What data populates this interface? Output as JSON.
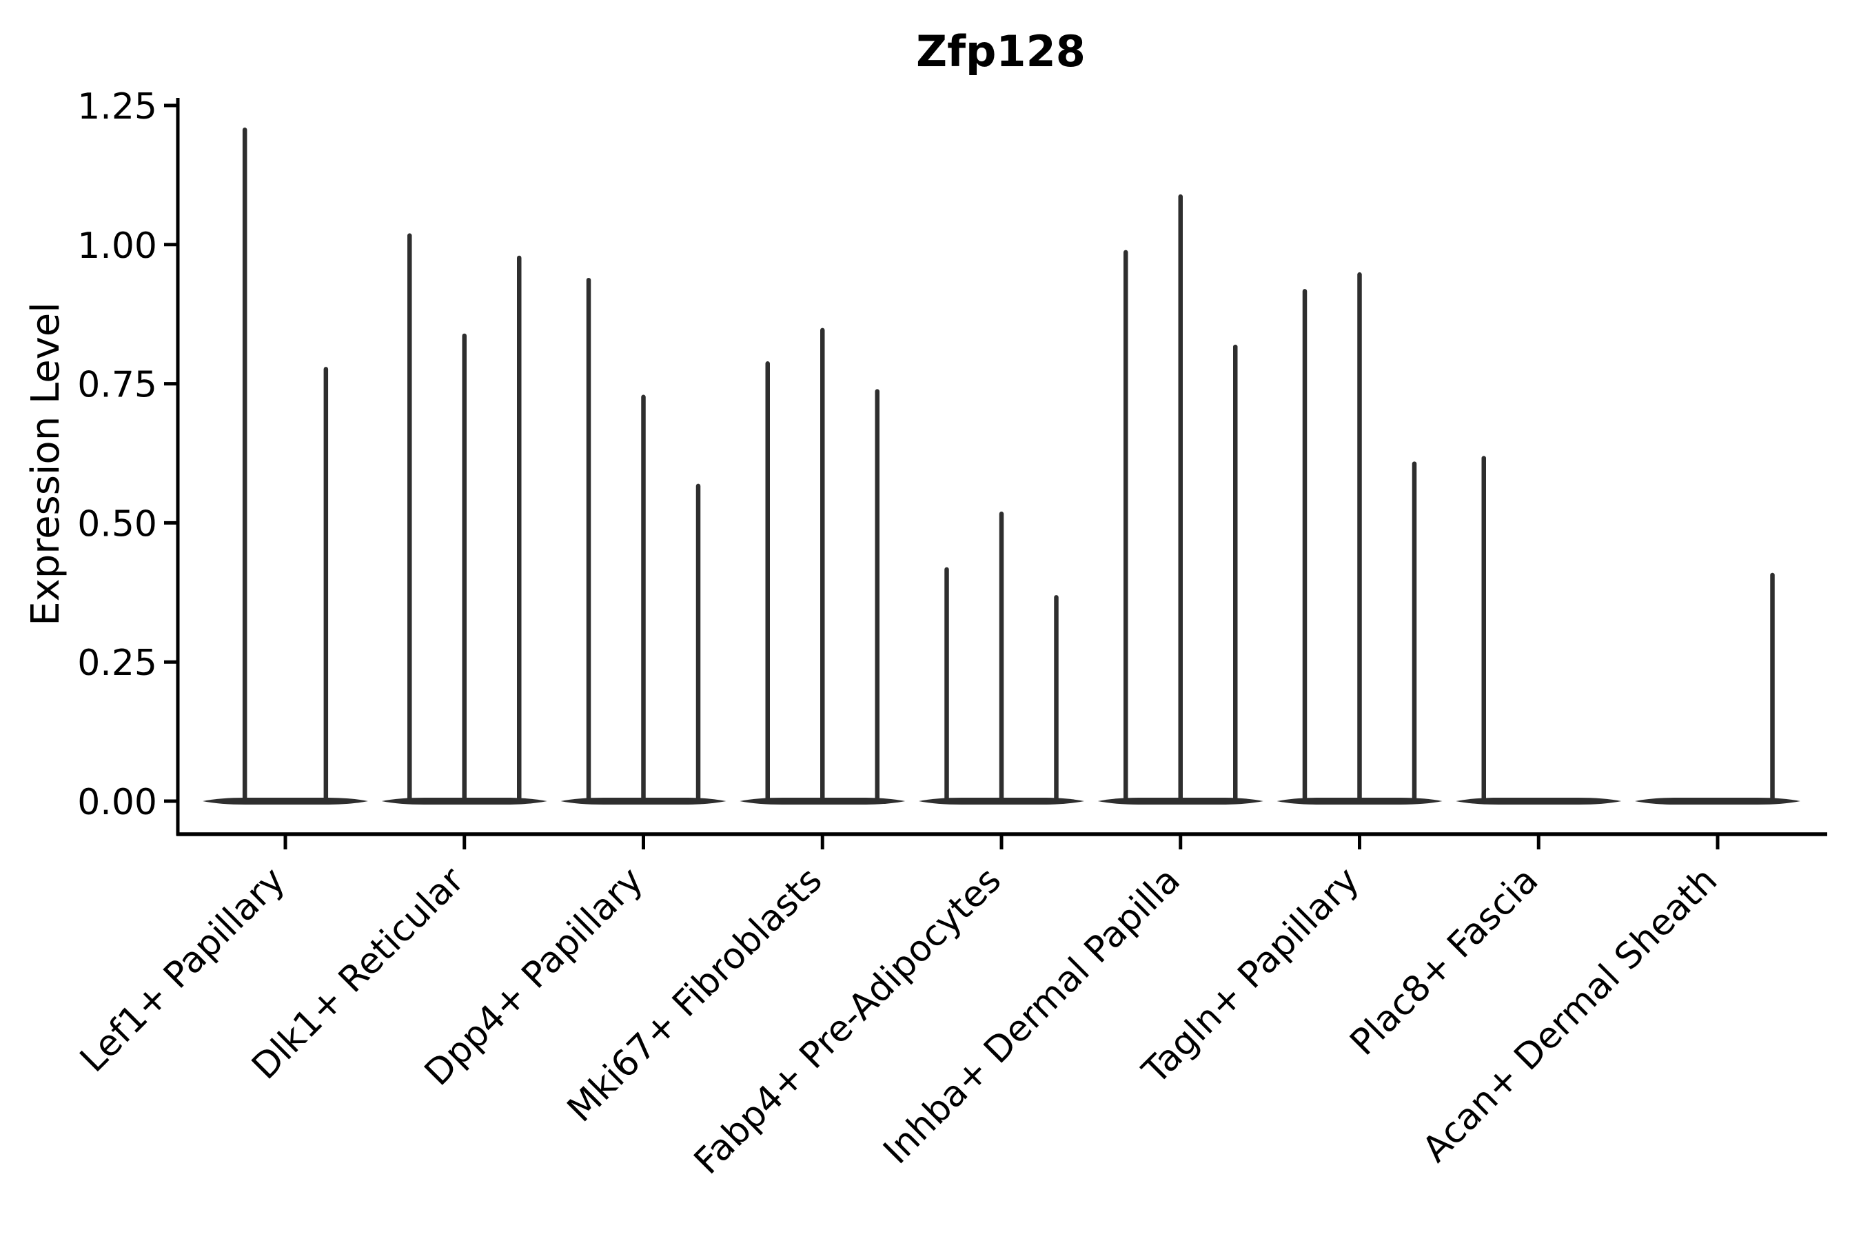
{
  "colors": {
    "background": "#ffffff",
    "violin": "#2e2e2e",
    "axis": "#000000",
    "text": "#000000"
  },
  "chart_data": {
    "type": "violin",
    "title": "Zfp128",
    "xlabel": "",
    "ylabel": "Expression Level",
    "ylim": [
      0,
      1.25
    ],
    "yticks": [
      "0.00",
      "0.25",
      "0.50",
      "0.75",
      "1.00",
      "1.25"
    ],
    "ytick_values": [
      0.0,
      0.25,
      0.5,
      0.75,
      1.0,
      1.25
    ],
    "grid": false,
    "legend": "none",
    "categories": [
      {
        "label": "Lef1+ Papillary",
        "violins": [
          {
            "pos": -0.74,
            "max": 1.21
          },
          {
            "pos": 0.74,
            "max": 0.78
          }
        ]
      },
      {
        "label": "Dlk1+ Reticular",
        "violins": [
          {
            "pos": -1,
            "max": 1.02
          },
          {
            "pos": 0,
            "max": 0.84
          },
          {
            "pos": 1,
            "max": 0.98
          }
        ]
      },
      {
        "label": "Dpp4+ Papillary",
        "violins": [
          {
            "pos": -1,
            "max": 0.94
          },
          {
            "pos": 0,
            "max": 0.73
          },
          {
            "pos": 1,
            "max": 0.57
          }
        ]
      },
      {
        "label": "Mki67+ Fibroblasts",
        "violins": [
          {
            "pos": -1,
            "max": 0.79
          },
          {
            "pos": 0,
            "max": 0.85
          },
          {
            "pos": 1,
            "max": 0.74
          }
        ]
      },
      {
        "label": "Fabp4+ Pre-Adipocytes",
        "violins": [
          {
            "pos": -1,
            "max": 0.42
          },
          {
            "pos": 0,
            "max": 0.52
          },
          {
            "pos": 1,
            "max": 0.37
          }
        ]
      },
      {
        "label": "Inhba+ Dermal Papilla",
        "violins": [
          {
            "pos": -1,
            "max": 0.99
          },
          {
            "pos": 0,
            "max": 1.09
          },
          {
            "pos": 1,
            "max": 0.82
          }
        ]
      },
      {
        "label": "Tagln+ Papillary",
        "violins": [
          {
            "pos": -1,
            "max": 0.92
          },
          {
            "pos": 0,
            "max": 0.95
          },
          {
            "pos": 1,
            "max": 0.61
          }
        ]
      },
      {
        "label": "Plac8+ Fascia",
        "violins": [
          {
            "pos": -1,
            "max": 0.62
          }
        ]
      },
      {
        "label": "Acan+ Dermal Sheath",
        "violins": [
          {
            "pos": 1,
            "max": 0.41
          }
        ]
      }
    ]
  }
}
